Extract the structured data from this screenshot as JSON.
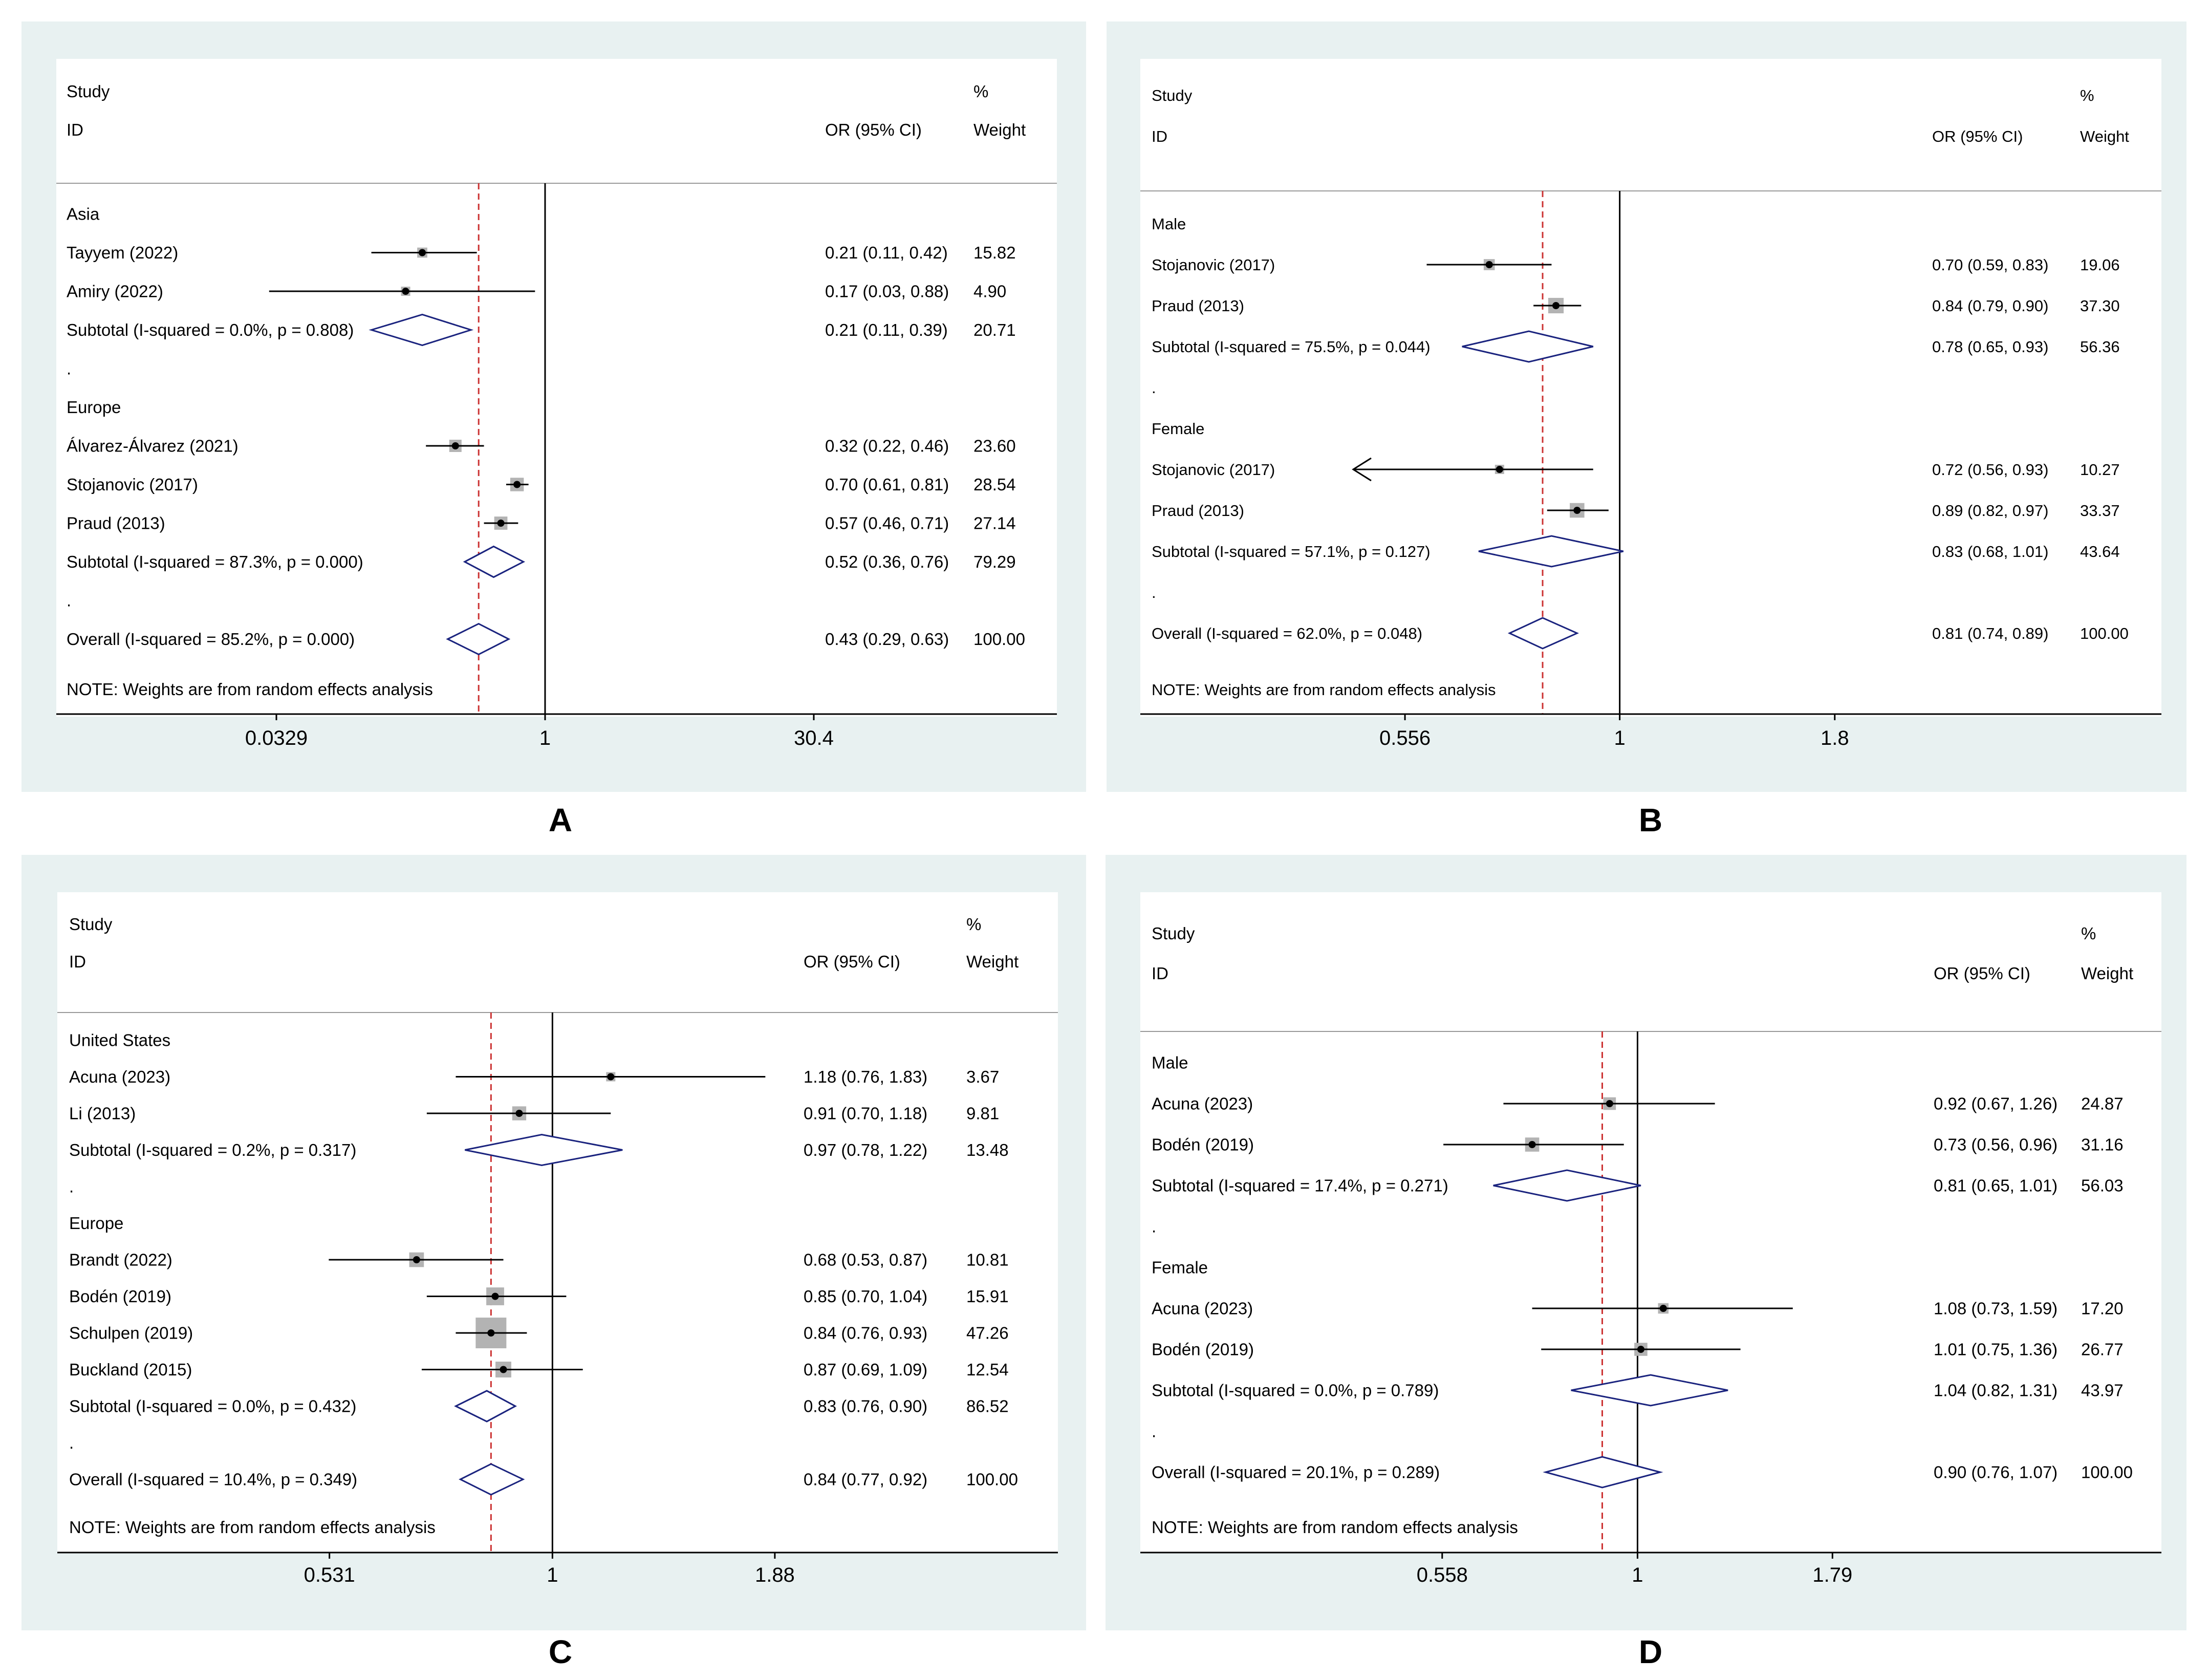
{
  "colors": {
    "background": "#e8f1f1",
    "plot_background": "#ffffff",
    "diamond": "#1a237e",
    "square": "#b3b3b3",
    "point": "#000000",
    "null_line": "#000000",
    "overall_line": "#cc3333"
  },
  "panel_labels": [
    "A",
    "B",
    "C",
    "D"
  ],
  "chart_data": [
    {
      "type": "forest",
      "panel": "A",
      "headers": {
        "study_top": "Study",
        "study_bottom": "ID",
        "estimate": "OR (95% CI)",
        "weight_top": "%",
        "weight_bottom": "Weight"
      },
      "axis": {
        "scale": "log",
        "ticks": [
          0.0329,
          1,
          30.4
        ],
        "tick_labels": [
          "0.0329",
          "1",
          "30.4"
        ],
        "range": [
          0.0329,
          30.4
        ]
      },
      "overall_estimate": 0.43,
      "note": "NOTE: Weights are from random effects analysis",
      "rows": [
        {
          "kind": "header",
          "label": "Asia"
        },
        {
          "kind": "study",
          "label": "Tayyem (2022)",
          "or": 0.21,
          "lo": 0.11,
          "hi": 0.42,
          "weight": 15.82,
          "text": "0.21 (0.11, 0.42)",
          "wtext": "15.82"
        },
        {
          "kind": "study",
          "label": "Amiry (2022)",
          "or": 0.17,
          "lo": 0.03,
          "hi": 0.88,
          "weight": 4.9,
          "text": "0.17 (0.03, 0.88)",
          "wtext": "4.90"
        },
        {
          "kind": "subtotal",
          "label": "Subtotal  (I-squared = 0.0%, p = 0.808)",
          "or": 0.21,
          "lo": 0.11,
          "hi": 0.39,
          "text": "0.21 (0.11, 0.39)",
          "wtext": "20.71"
        },
        {
          "kind": "dot",
          "label": "."
        },
        {
          "kind": "header",
          "label": "Europe"
        },
        {
          "kind": "study",
          "label": "Álvarez-Álvarez (2021)",
          "or": 0.32,
          "lo": 0.22,
          "hi": 0.46,
          "weight": 23.6,
          "text": "0.32 (0.22, 0.46)",
          "wtext": "23.60"
        },
        {
          "kind": "study",
          "label": "Stojanovic (2017)",
          "or": 0.7,
          "lo": 0.61,
          "hi": 0.81,
          "weight": 28.54,
          "text": "0.70 (0.61, 0.81)",
          "wtext": "28.54"
        },
        {
          "kind": "study",
          "label": "Praud (2013)",
          "or": 0.57,
          "lo": 0.46,
          "hi": 0.71,
          "weight": 27.14,
          "text": "0.57 (0.46, 0.71)",
          "wtext": "27.14"
        },
        {
          "kind": "subtotal",
          "label": "Subtotal  (I-squared = 87.3%, p = 0.000)",
          "or": 0.52,
          "lo": 0.36,
          "hi": 0.76,
          "text": "0.52 (0.36, 0.76)",
          "wtext": "79.29"
        },
        {
          "kind": "dot",
          "label": "."
        },
        {
          "kind": "subtotal",
          "label": "Overall  (I-squared = 85.2%, p = 0.000)",
          "or": 0.43,
          "lo": 0.29,
          "hi": 0.63,
          "text": "0.43 (0.29, 0.63)",
          "wtext": "100.00"
        }
      ]
    },
    {
      "type": "forest",
      "panel": "B",
      "headers": {
        "study_top": "Study",
        "study_bottom": "ID",
        "estimate": "OR (95% CI)",
        "weight_top": "%",
        "weight_bottom": "Weight"
      },
      "axis": {
        "scale": "log",
        "ticks": [
          0.556,
          1,
          1.8
        ],
        "tick_labels": [
          "0.556",
          "1",
          "1.8"
        ],
        "range": [
          0.48,
          2.3
        ]
      },
      "overall_estimate": 0.81,
      "note": "NOTE: Weights are from random effects analysis",
      "rows": [
        {
          "kind": "header",
          "label": "Male"
        },
        {
          "kind": "study",
          "label": "Stojanovic (2017)",
          "or": 0.7,
          "lo": 0.59,
          "hi": 0.83,
          "weight": 19.06,
          "text": "0.70 (0.59, 0.83)",
          "wtext": "19.06"
        },
        {
          "kind": "study",
          "label": "Praud (2013)",
          "or": 0.84,
          "lo": 0.79,
          "hi": 0.9,
          "weight": 37.3,
          "text": "0.84 (0.79, 0.90)",
          "wtext": "37.30"
        },
        {
          "kind": "subtotal",
          "label": "Subtotal  (I-squared = 75.5%, p = 0.044)",
          "or": 0.78,
          "lo": 0.65,
          "hi": 0.93,
          "text": "0.78 (0.65, 0.93)",
          "wtext": "56.36"
        },
        {
          "kind": "dot",
          "label": "."
        },
        {
          "kind": "header",
          "label": "Female"
        },
        {
          "kind": "study",
          "label": "Stojanovic (2017)",
          "or": 0.72,
          "lo": 0.56,
          "hi": 0.93,
          "weight": 10.27,
          "text": "0.72 (0.56, 0.93)",
          "wtext": "10.27",
          "arrow_left": true
        },
        {
          "kind": "study",
          "label": "Praud (2013)",
          "or": 0.89,
          "lo": 0.82,
          "hi": 0.97,
          "weight": 33.37,
          "text": "0.89 (0.82, 0.97)",
          "wtext": "33.37"
        },
        {
          "kind": "subtotal",
          "label": "Subtotal  (I-squared = 57.1%, p = 0.127)",
          "or": 0.83,
          "lo": 0.68,
          "hi": 1.01,
          "text": "0.83 (0.68, 1.01)",
          "wtext": "43.64"
        },
        {
          "kind": "dot",
          "label": "."
        },
        {
          "kind": "subtotal",
          "label": "Overall  (I-squared = 62.0%, p = 0.048)",
          "or": 0.81,
          "lo": 0.74,
          "hi": 0.89,
          "text": "0.81 (0.74, 0.89)",
          "wtext": "100.00"
        }
      ]
    },
    {
      "type": "forest",
      "panel": "C",
      "headers": {
        "study_top": "Study",
        "study_bottom": "ID",
        "estimate": "OR (95% CI)",
        "weight_top": "%",
        "weight_bottom": "Weight"
      },
      "axis": {
        "scale": "log",
        "ticks": [
          0.531,
          1,
          1.88
        ],
        "tick_labels": [
          "0.531",
          "1",
          "1.88"
        ],
        "range": [
          0.395,
          3.2
        ]
      },
      "overall_estimate": 0.84,
      "note": "NOTE: Weights are from random effects analysis",
      "rows": [
        {
          "kind": "header",
          "label": "United States"
        },
        {
          "kind": "study",
          "label": "Acuna (2023)",
          "or": 1.18,
          "lo": 0.76,
          "hi": 1.83,
          "weight": 3.67,
          "text": "1.18 (0.76, 1.83)",
          "wtext": "3.67"
        },
        {
          "kind": "study",
          "label": "Li (2013)",
          "or": 0.91,
          "lo": 0.7,
          "hi": 1.18,
          "weight": 9.81,
          "text": "0.91 (0.70, 1.18)",
          "wtext": "9.81"
        },
        {
          "kind": "subtotal",
          "label": "Subtotal  (I-squared = 0.2%, p = 0.317)",
          "or": 0.97,
          "lo": 0.78,
          "hi": 1.22,
          "text": "0.97 (0.78, 1.22)",
          "wtext": "13.48"
        },
        {
          "kind": "dot",
          "label": "."
        },
        {
          "kind": "header",
          "label": "Europe"
        },
        {
          "kind": "study",
          "label": "Brandt (2022)",
          "or": 0.68,
          "lo": 0.53,
          "hi": 0.87,
          "weight": 10.81,
          "text": "0.68 (0.53, 0.87)",
          "wtext": "10.81"
        },
        {
          "kind": "study",
          "label": "Bodén (2019)",
          "or": 0.85,
          "lo": 0.7,
          "hi": 1.04,
          "weight": 15.91,
          "text": "0.85 (0.70, 1.04)",
          "wtext": "15.91"
        },
        {
          "kind": "study",
          "label": "Schulpen (2019)",
          "or": 0.84,
          "lo": 0.76,
          "hi": 0.93,
          "weight": 47.26,
          "text": "0.84 (0.76, 0.93)",
          "wtext": "47.26"
        },
        {
          "kind": "study",
          "label": "Buckland (2015)",
          "or": 0.87,
          "lo": 0.69,
          "hi": 1.09,
          "weight": 12.54,
          "text": "0.87 (0.69, 1.09)",
          "wtext": "12.54"
        },
        {
          "kind": "subtotal",
          "label": "Subtotal  (I-squared = 0.0%, p = 0.432)",
          "or": 0.83,
          "lo": 0.76,
          "hi": 0.9,
          "text": "0.83 (0.76, 0.90)",
          "wtext": "86.52"
        },
        {
          "kind": "dot",
          "label": "."
        },
        {
          "kind": "subtotal",
          "label": "Overall  (I-squared = 10.4%, p = 0.349)",
          "or": 0.84,
          "lo": 0.77,
          "hi": 0.92,
          "text": "0.84 (0.77, 0.92)",
          "wtext": "100.00"
        }
      ]
    },
    {
      "type": "forest",
      "panel": "D",
      "headers": {
        "study_top": "Study",
        "study_bottom": "ID",
        "estimate": "OR (95% CI)",
        "weight_top": "%",
        "weight_bottom": "Weight"
      },
      "axis": {
        "scale": "log",
        "ticks": [
          0.558,
          1,
          1.79
        ],
        "tick_labels": [
          "0.558",
          "1",
          "1.79"
        ],
        "range": [
          0.4,
          3.4
        ]
      },
      "overall_estimate": 0.9,
      "note": "NOTE: Weights are from random effects analysis",
      "rows": [
        {
          "kind": "header",
          "label": "Male"
        },
        {
          "kind": "study",
          "label": "Acuna (2023)",
          "or": 0.92,
          "lo": 0.67,
          "hi": 1.26,
          "weight": 24.87,
          "text": "0.92 (0.67, 1.26)",
          "wtext": "24.87"
        },
        {
          "kind": "study",
          "label": "Bodén (2019)",
          "or": 0.73,
          "lo": 0.56,
          "hi": 0.96,
          "weight": 31.16,
          "text": "0.73 (0.56, 0.96)",
          "wtext": "31.16"
        },
        {
          "kind": "subtotal",
          "label": "Subtotal  (I-squared = 17.4%, p = 0.271)",
          "or": 0.81,
          "lo": 0.65,
          "hi": 1.01,
          "text": "0.81 (0.65, 1.01)",
          "wtext": "56.03"
        },
        {
          "kind": "dot",
          "label": "."
        },
        {
          "kind": "header",
          "label": "Female"
        },
        {
          "kind": "study",
          "label": "Acuna (2023)",
          "or": 1.08,
          "lo": 0.73,
          "hi": 1.59,
          "weight": 17.2,
          "text": "1.08 (0.73, 1.59)",
          "wtext": "17.20"
        },
        {
          "kind": "study",
          "label": "Bodén (2019)",
          "or": 1.01,
          "lo": 0.75,
          "hi": 1.36,
          "weight": 26.77,
          "text": "1.01 (0.75, 1.36)",
          "wtext": "26.77"
        },
        {
          "kind": "subtotal",
          "label": "Subtotal  (I-squared = 0.0%, p = 0.789)",
          "or": 1.04,
          "lo": 0.82,
          "hi": 1.31,
          "text": "1.04 (0.82, 1.31)",
          "wtext": "43.97"
        },
        {
          "kind": "dot",
          "label": "."
        },
        {
          "kind": "subtotal",
          "label": "Overall  (I-squared = 20.1%, p = 0.289)",
          "or": 0.9,
          "lo": 0.76,
          "hi": 1.07,
          "text": "0.90 (0.76, 1.07)",
          "wtext": "100.00"
        }
      ]
    }
  ]
}
